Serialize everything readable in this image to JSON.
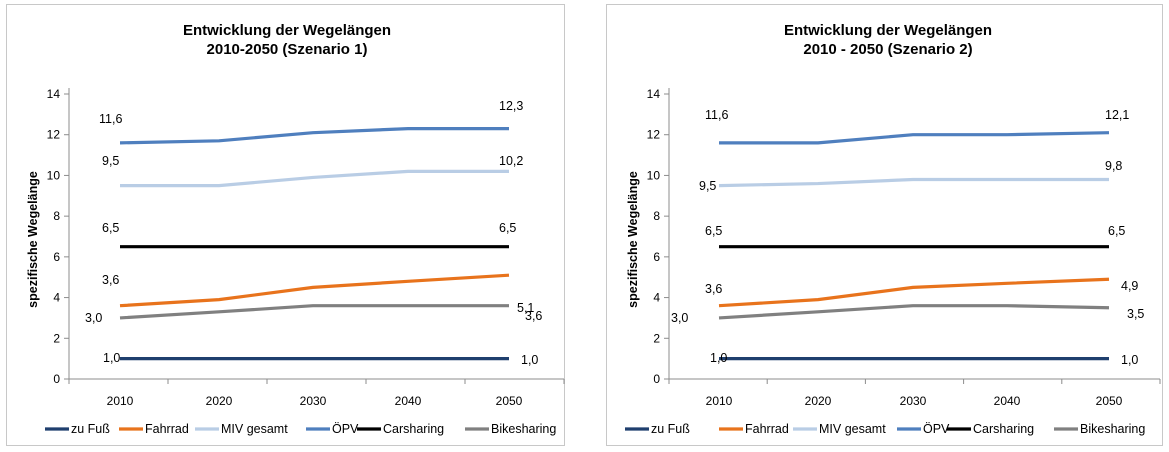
{
  "chart_data": [
    {
      "type": "line",
      "title": [
        "Entwicklung der Wegelängen",
        "2010-2050 (Szenario 1)"
      ],
      "ylabel": "spezifische Wegelänge",
      "xlabel": "",
      "ylim": [
        0,
        14
      ],
      "yticks": [
        0,
        2,
        4,
        6,
        8,
        10,
        12,
        14
      ],
      "categories": [
        "2010",
        "2020",
        "2030",
        "2040",
        "2050"
      ],
      "grid": false,
      "legend": "bottom",
      "series": [
        {
          "name": "zu Fuß",
          "color": "#1f3f6e",
          "values": [
            1.0,
            1.0,
            1.0,
            1.0,
            1.0
          ],
          "labels": {
            "first": "1,0",
            "last": "1,0"
          }
        },
        {
          "name": "Fahrrad",
          "color": "#e8731c",
          "values": [
            3.6,
            3.9,
            4.5,
            4.8,
            5.1
          ],
          "labels": {
            "first": "3,6",
            "last": "5,1"
          }
        },
        {
          "name": "MIV gesamt",
          "color": "#b9cde5",
          "values": [
            9.5,
            9.5,
            9.9,
            10.2,
            10.2
          ],
          "labels": {
            "first": "9,5",
            "last": "10,2"
          }
        },
        {
          "name": "ÖPV",
          "color": "#4f7fbe",
          "values": [
            11.6,
            11.7,
            12.1,
            12.3,
            12.3
          ],
          "labels": {
            "first": "11,6",
            "last": "12,3"
          }
        },
        {
          "name": "Carsharing",
          "color": "#000000",
          "values": [
            6.5,
            6.5,
            6.5,
            6.5,
            6.5
          ],
          "labels": {
            "first": "6,5",
            "last": "6,5"
          }
        },
        {
          "name": "Bikesharing",
          "color": "#808080",
          "values": [
            3.0,
            3.3,
            3.6,
            3.6,
            3.6
          ],
          "labels": {
            "first": "3,0",
            "last": "3,6"
          }
        }
      ]
    },
    {
      "type": "line",
      "title": [
        "Entwicklung der Wegelängen",
        "2010 - 2050 (Szenario 2)"
      ],
      "ylabel": "spezifische Wegelänge",
      "xlabel": "",
      "ylim": [
        0,
        14
      ],
      "yticks": [
        0,
        2,
        4,
        6,
        8,
        10,
        12,
        14
      ],
      "categories": [
        "2010",
        "2020",
        "2030",
        "2040",
        "2050"
      ],
      "grid": false,
      "legend": "bottom",
      "series": [
        {
          "name": "zu Fuß",
          "color": "#1f3f6e",
          "values": [
            1.0,
            1.0,
            1.0,
            1.0,
            1.0
          ],
          "labels": {
            "first": "1,0",
            "last": "1,0"
          }
        },
        {
          "name": "Fahrrad",
          "color": "#e8731c",
          "values": [
            3.6,
            3.9,
            4.5,
            4.7,
            4.9
          ],
          "labels": {
            "first": "3,6",
            "last": "4,9"
          }
        },
        {
          "name": "MIV gesamt",
          "color": "#b9cde5",
          "values": [
            9.5,
            9.6,
            9.8,
            9.8,
            9.8
          ],
          "labels": {
            "first": "9,5",
            "last": "9,8"
          }
        },
        {
          "name": "ÖPV",
          "color": "#4f7fbe",
          "values": [
            11.6,
            11.6,
            12.0,
            12.0,
            12.1
          ],
          "labels": {
            "first": "11,6",
            "last": "12,1"
          }
        },
        {
          "name": "Carsharing",
          "color": "#000000",
          "values": [
            6.5,
            6.5,
            6.5,
            6.5,
            6.5
          ],
          "labels": {
            "first": "6,5",
            "last": "6,5"
          }
        },
        {
          "name": "Bikesharing",
          "color": "#808080",
          "values": [
            3.0,
            3.3,
            3.6,
            3.6,
            3.5
          ],
          "labels": {
            "first": "3,0",
            "last": "3,5"
          }
        }
      ]
    }
  ]
}
